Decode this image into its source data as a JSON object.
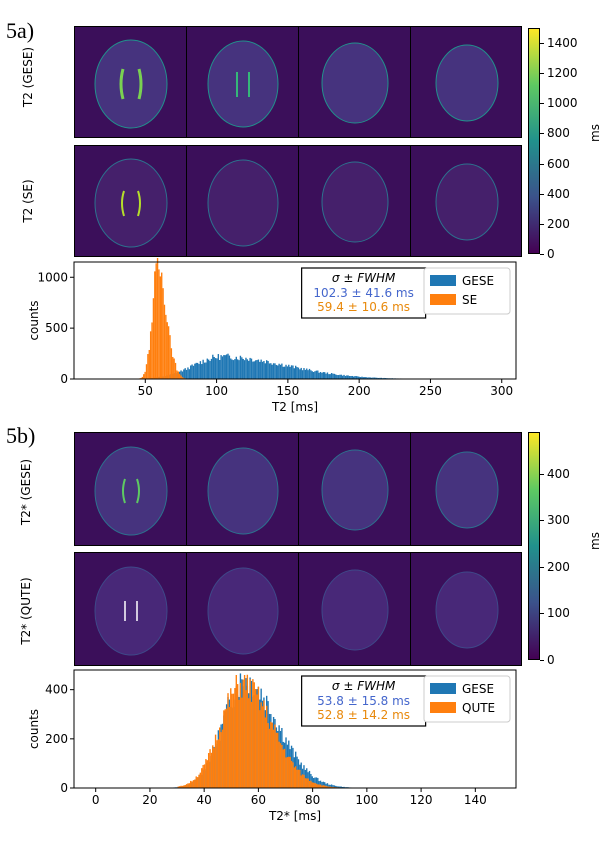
{
  "figure": {
    "panel_a": {
      "label": "5a)",
      "row_labels": [
        "T2 (GESE)",
        "T2 (SE)"
      ],
      "colorbar": {
        "ticks": [
          "0",
          "200",
          "400",
          "600",
          "800",
          "1000",
          "1200",
          "1400"
        ],
        "unit": "ms"
      }
    },
    "panel_b": {
      "label": "5b)",
      "row_labels": [
        "T2* (GESE)",
        "T2* (QUTE)"
      ],
      "colorbar": {
        "ticks": [
          "0",
          "100",
          "200",
          "300",
          "400"
        ],
        "unit": "ms"
      }
    }
  },
  "colors": {
    "gese": "#1f77b4",
    "se": "#ff7f0e",
    "stat_blue": "#4466cc",
    "stat_orange": "#e8890c",
    "map_bg": "#3b0f5a"
  },
  "chart_data": [
    {
      "type": "bar",
      "title": "",
      "xlabel": "T2 [ms]",
      "ylabel": "counts",
      "xlim": [
        0,
        310
      ],
      "ylim": [
        0,
        1150
      ],
      "xticks": [
        50,
        100,
        150,
        200,
        250,
        300
      ],
      "yticks": [
        0,
        500,
        1000
      ],
      "legend": "top-right",
      "stats_box": {
        "header": "σ  ±  FWHM",
        "lines": [
          "102.3 ±  41.6 ms",
          "59.4 ±  10.6 ms"
        ]
      },
      "series": [
        {
          "name": "GESE",
          "shape": {
            "peak": 104,
            "peak_value": 220,
            "sigma_left": 20,
            "sigma_right": 45,
            "tail": 300,
            "start": 35
          }
        },
        {
          "name": "SE",
          "shape": {
            "peak": 59,
            "peak_value": 1100,
            "sigma_left": 4,
            "sigma_right": 6,
            "tail": 90,
            "start": 30
          }
        }
      ]
    },
    {
      "type": "bar",
      "title": "",
      "xlabel": "T2* [ms]",
      "ylabel": "counts",
      "xlim": [
        -8,
        155
      ],
      "ylim": [
        0,
        480
      ],
      "xticks": [
        0,
        20,
        40,
        60,
        80,
        100,
        120,
        140
      ],
      "yticks": [
        0,
        200,
        400
      ],
      "legend": "top-right",
      "stats_box": {
        "header": "σ  ±  FWHM",
        "lines": [
          "53.8 ±  15.8 ms",
          "52.8 ±  14.2 ms"
        ]
      },
      "series": [
        {
          "name": "GESE",
          "shape": {
            "peak": 55,
            "peak_value": 440,
            "sigma_left": 8,
            "sigma_right": 12,
            "tail": 150,
            "start": 5
          }
        },
        {
          "name": "QUTE",
          "shape": {
            "peak": 54,
            "peak_value": 420,
            "sigma_left": 8,
            "sigma_right": 11,
            "tail": 150,
            "start": 30
          }
        }
      ]
    }
  ]
}
